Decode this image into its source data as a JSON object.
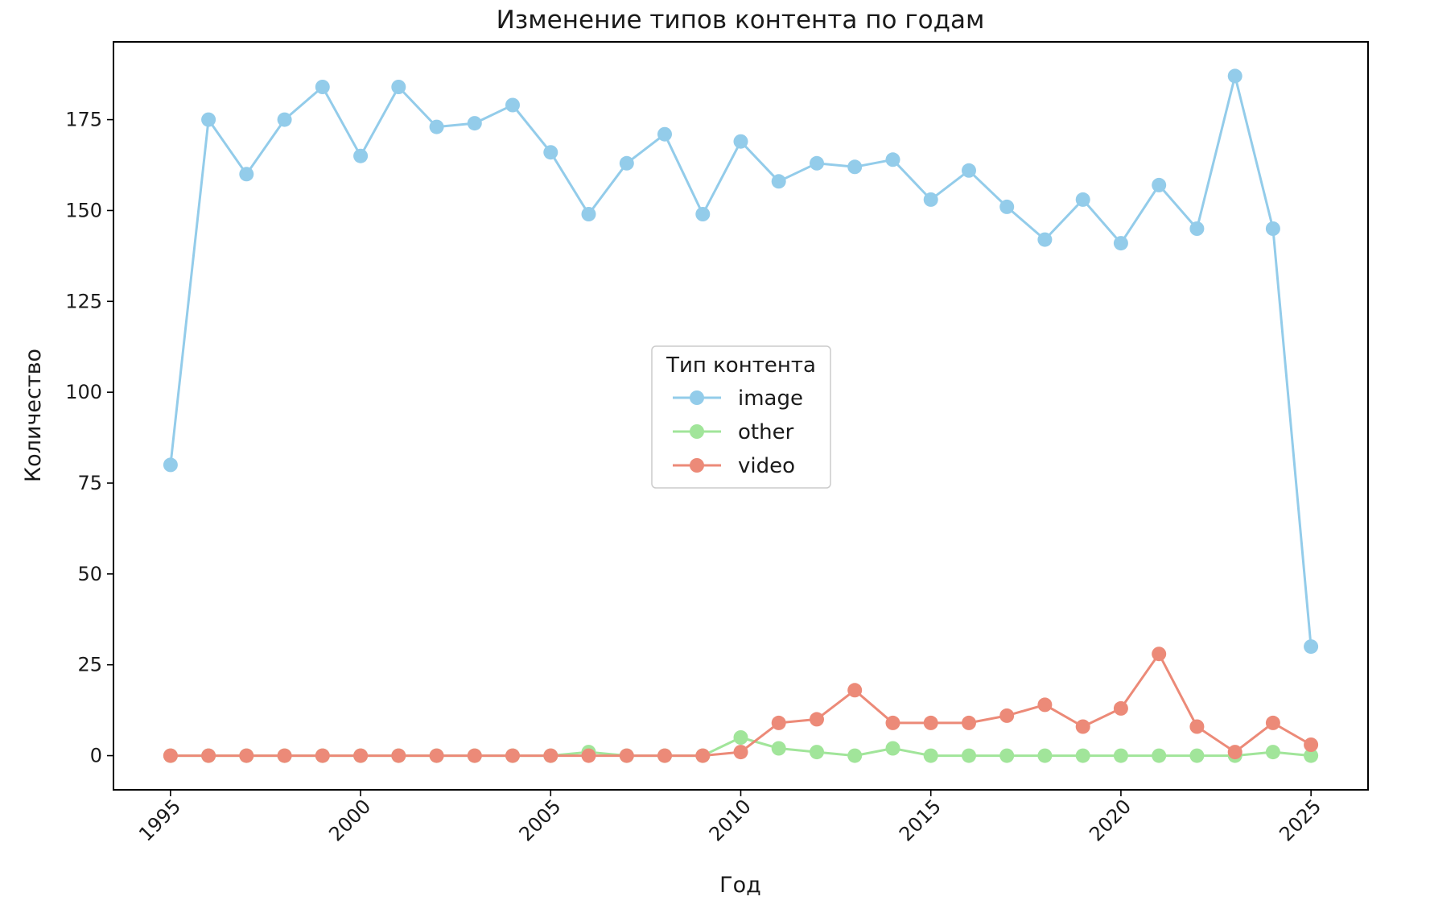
{
  "chart_data": {
    "type": "line",
    "title": "Изменение типов контента по годам",
    "xlabel": "Год",
    "ylabel": "Количество",
    "x": [
      1995,
      1996,
      1997,
      1998,
      1999,
      2000,
      2001,
      2002,
      2003,
      2004,
      2005,
      2006,
      2007,
      2008,
      2009,
      2010,
      2011,
      2012,
      2013,
      2014,
      2015,
      2016,
      2017,
      2018,
      2019,
      2020,
      2021,
      2022,
      2023,
      2024,
      2025
    ],
    "xlim": [
      1993.5,
      2026.5
    ],
    "ylim": [
      -9.4,
      196.4
    ],
    "xticks": [
      1995,
      2000,
      2005,
      2010,
      2015,
      2020,
      2025
    ],
    "yticks": [
      0,
      25,
      50,
      75,
      100,
      125,
      150,
      175
    ],
    "grid": false,
    "legend": {
      "title": "Тип контента",
      "placement": "center"
    },
    "series": [
      {
        "name": "image",
        "color": "#93CCEA",
        "values": [
          80,
          175,
          160,
          175,
          184,
          165,
          184,
          173,
          174,
          179,
          166,
          149,
          163,
          171,
          149,
          169,
          158,
          163,
          162,
          164,
          153,
          161,
          151,
          142,
          153,
          141,
          157,
          145,
          187,
          145,
          30
        ]
      },
      {
        "name": "other",
        "color": "#A1E59A",
        "values": [
          0,
          0,
          0,
          0,
          0,
          0,
          0,
          0,
          0,
          0,
          0,
          1,
          0,
          0,
          0,
          5,
          2,
          1,
          0,
          2,
          0,
          0,
          0,
          0,
          0,
          0,
          0,
          0,
          0,
          1,
          0
        ]
      },
      {
        "name": "video",
        "color": "#EC8A78",
        "values": [
          0,
          0,
          0,
          0,
          0,
          0,
          0,
          0,
          0,
          0,
          0,
          0,
          0,
          0,
          0,
          1,
          9,
          10,
          18,
          9,
          9,
          9,
          11,
          14,
          8,
          13,
          28,
          8,
          1,
          9,
          3
        ]
      }
    ]
  }
}
